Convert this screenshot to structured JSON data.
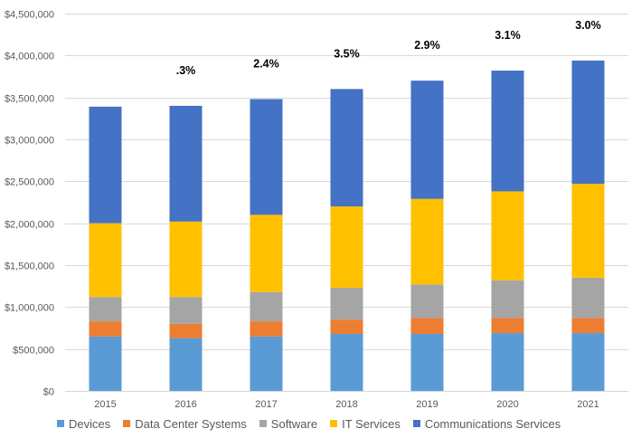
{
  "chart_data": {
    "type": "bar",
    "stacked": true,
    "title": "",
    "xlabel": "",
    "ylabel": "",
    "ylim": [
      0,
      4500000
    ],
    "y_ticks": [
      0,
      500000,
      1000000,
      1500000,
      2000000,
      2500000,
      3000000,
      3500000,
      4000000,
      4500000
    ],
    "y_tick_labels": [
      "$0",
      "$500,000",
      "$1,000,000",
      "$1,500,000",
      "$2,000,000",
      "$2,500,000",
      "$3,000,000",
      "$3,500,000",
      "$4,000,000",
      "$4,500,000"
    ],
    "grid": true,
    "legend_position": "bottom",
    "categories": [
      "2015",
      "2016",
      "2017",
      "2018",
      "2019",
      "2020",
      "2021"
    ],
    "series": [
      {
        "name": "Devices",
        "color": "#5b9bd5",
        "values": [
          650000,
          630000,
          650000,
          680000,
          680000,
          690000,
          690000
        ]
      },
      {
        "name": "Data Center Systems",
        "color": "#ed7d31",
        "values": [
          180000,
          170000,
          180000,
          170000,
          190000,
          180000,
          180000
        ]
      },
      {
        "name": "Software",
        "color": "#a5a5a5",
        "values": [
          290000,
          320000,
          350000,
          380000,
          400000,
          450000,
          480000
        ]
      },
      {
        "name": "IT Services",
        "color": "#ffc000",
        "values": [
          880000,
          900000,
          920000,
          970000,
          1020000,
          1060000,
          1120000
        ]
      },
      {
        "name": "Communications Services",
        "color": "#4472c4",
        "values": [
          1390000,
          1380000,
          1380000,
          1400000,
          1410000,
          1440000,
          1470000
        ]
      }
    ],
    "annotations": [
      {
        "category": "2016",
        "text": ".3%"
      },
      {
        "category": "2017",
        "text": "2.4%"
      },
      {
        "category": "2018",
        "text": "3.5%"
      },
      {
        "category": "2019",
        "text": "2.9%"
      },
      {
        "category": "2020",
        "text": "3.1%"
      },
      {
        "category": "2021",
        "text": "3.0%"
      }
    ]
  }
}
